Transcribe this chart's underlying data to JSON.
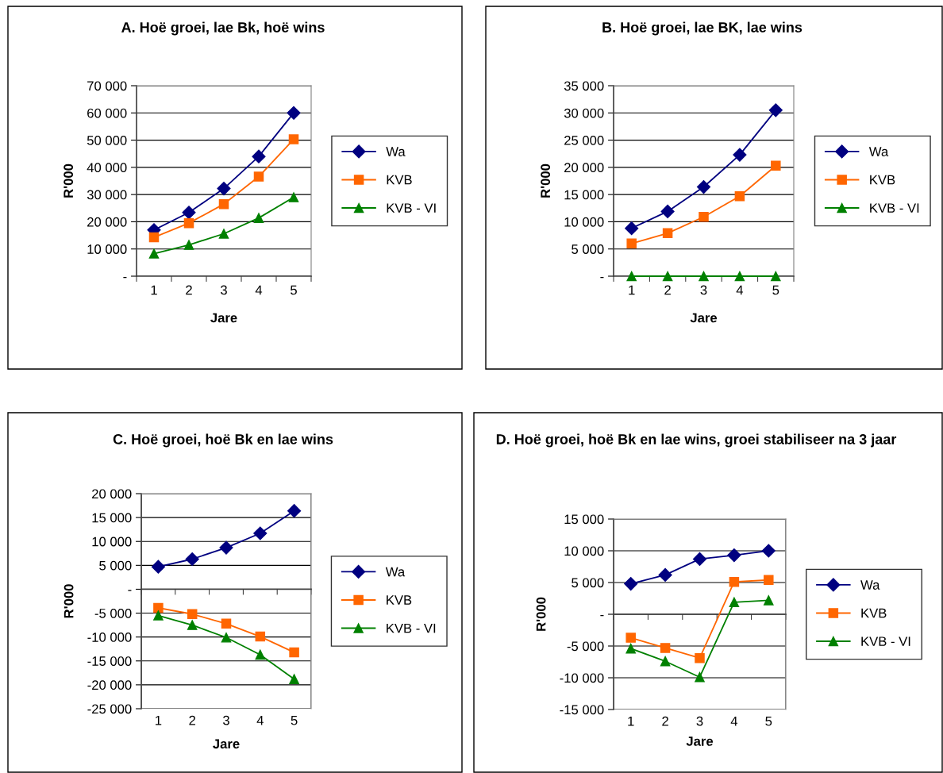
{
  "chart_data": [
    {
      "type": "line",
      "title": "A. Hoë groei, lae Bk, hoë wins",
      "xlabel": "Jare",
      "ylabel": "R'000",
      "categories": [
        "1",
        "2",
        "3",
        "4",
        "5"
      ],
      "ylim": [
        0,
        70000
      ],
      "yticks": [
        {
          "value": 0,
          "label": "-"
        },
        {
          "value": 10000,
          "label": "10 000"
        },
        {
          "value": 20000,
          "label": "20 000"
        },
        {
          "value": 30000,
          "label": "30 000"
        },
        {
          "value": 40000,
          "label": "40 000"
        },
        {
          "value": 50000,
          "label": "50 000"
        },
        {
          "value": 60000,
          "label": "60 000"
        },
        {
          "value": 70000,
          "label": "70 000"
        }
      ],
      "grid": "y",
      "legend": "right",
      "series": [
        {
          "name": "Wa",
          "color": "#000080",
          "marker": "diamond",
          "values": [
            17000,
            23400,
            32200,
            44000,
            60000
          ]
        },
        {
          "name": "KVB",
          "color": "#ff6600",
          "marker": "square",
          "values": [
            14300,
            19500,
            26500,
            36600,
            50300
          ]
        },
        {
          "name": "KVB - VI",
          "color": "#008000",
          "marker": "triangle",
          "values": [
            8300,
            11500,
            15600,
            21400,
            29000
          ]
        }
      ]
    },
    {
      "type": "line",
      "title": "B. Hoë groei, lae BK, lae wins",
      "xlabel": "Jare",
      "ylabel": "R'000",
      "categories": [
        "1",
        "2",
        "3",
        "4",
        "5"
      ],
      "ylim": [
        0,
        35000
      ],
      "yticks": [
        {
          "value": 0,
          "label": "-"
        },
        {
          "value": 5000,
          "label": "5 000"
        },
        {
          "value": 10000,
          "label": "10 000"
        },
        {
          "value": 15000,
          "label": "15 000"
        },
        {
          "value": 20000,
          "label": "20 000"
        },
        {
          "value": 25000,
          "label": "25 000"
        },
        {
          "value": 30000,
          "label": "30 000"
        },
        {
          "value": 35000,
          "label": "35 000"
        }
      ],
      "grid": "y",
      "legend": "right",
      "series": [
        {
          "name": "Wa",
          "color": "#000080",
          "marker": "diamond",
          "values": [
            8800,
            11900,
            16400,
            22300,
            30500
          ]
        },
        {
          "name": "KVB",
          "color": "#ff6600",
          "marker": "square",
          "values": [
            6000,
            7900,
            10900,
            14700,
            20300
          ]
        },
        {
          "name": "KVB - VI",
          "color": "#008000",
          "marker": "triangle",
          "values": [
            0,
            0,
            0,
            0,
            0
          ]
        }
      ]
    },
    {
      "type": "line",
      "title": "C. Hoë groei, hoë Bk en lae wins",
      "xlabel": "Jare",
      "ylabel": "R'000",
      "categories": [
        "1",
        "2",
        "3",
        "4",
        "5"
      ],
      "ylim": [
        -25000,
        20000
      ],
      "yticks": [
        {
          "value": -25000,
          "label": "-25 000"
        },
        {
          "value": -20000,
          "label": "-20 000"
        },
        {
          "value": -15000,
          "label": "-15 000"
        },
        {
          "value": -10000,
          "label": "-10 000"
        },
        {
          "value": -5000,
          "label": "-5 000"
        },
        {
          "value": 0,
          "label": "-"
        },
        {
          "value": 5000,
          "label": "5 000"
        },
        {
          "value": 10000,
          "label": "10 000"
        },
        {
          "value": 15000,
          "label": "15 000"
        },
        {
          "value": 20000,
          "label": "20 000"
        }
      ],
      "grid": "y",
      "legend": "right",
      "series": [
        {
          "name": "Wa",
          "color": "#000080",
          "marker": "diamond",
          "values": [
            4700,
            6300,
            8700,
            11700,
            16400
          ]
        },
        {
          "name": "KVB",
          "color": "#ff6600",
          "marker": "square",
          "values": [
            -3900,
            -5200,
            -7200,
            -9900,
            -13200
          ]
        },
        {
          "name": "KVB - VI",
          "color": "#008000",
          "marker": "triangle",
          "values": [
            -5500,
            -7500,
            -10100,
            -13700,
            -18800
          ]
        }
      ]
    },
    {
      "type": "line",
      "title": "D. Hoë groei, hoë Bk en lae wins, groei stabiliseer na 3 jaar",
      "xlabel": "Jare",
      "ylabel": "R'000",
      "categories": [
        "1",
        "2",
        "3",
        "4",
        "5"
      ],
      "ylim": [
        -15000,
        15000
      ],
      "yticks": [
        {
          "value": -15000,
          "label": "-15 000"
        },
        {
          "value": -10000,
          "label": "-10 000"
        },
        {
          "value": -5000,
          "label": "-5 000"
        },
        {
          "value": 0,
          "label": "-"
        },
        {
          "value": 5000,
          "label": "5 000"
        },
        {
          "value": 10000,
          "label": "10 000"
        },
        {
          "value": 15000,
          "label": "15 000"
        }
      ],
      "grid": "y",
      "legend": "right",
      "series": [
        {
          "name": "Wa",
          "color": "#000080",
          "marker": "diamond",
          "values": [
            4800,
            6200,
            8700,
            9300,
            10000
          ]
        },
        {
          "name": "KVB",
          "color": "#ff6600",
          "marker": "square",
          "values": [
            -3700,
            -5300,
            -6900,
            5100,
            5400
          ]
        },
        {
          "name": "KVB - VI",
          "color": "#008000",
          "marker": "triangle",
          "values": [
            -5400,
            -7400,
            -9900,
            1900,
            2200
          ]
        }
      ]
    }
  ]
}
